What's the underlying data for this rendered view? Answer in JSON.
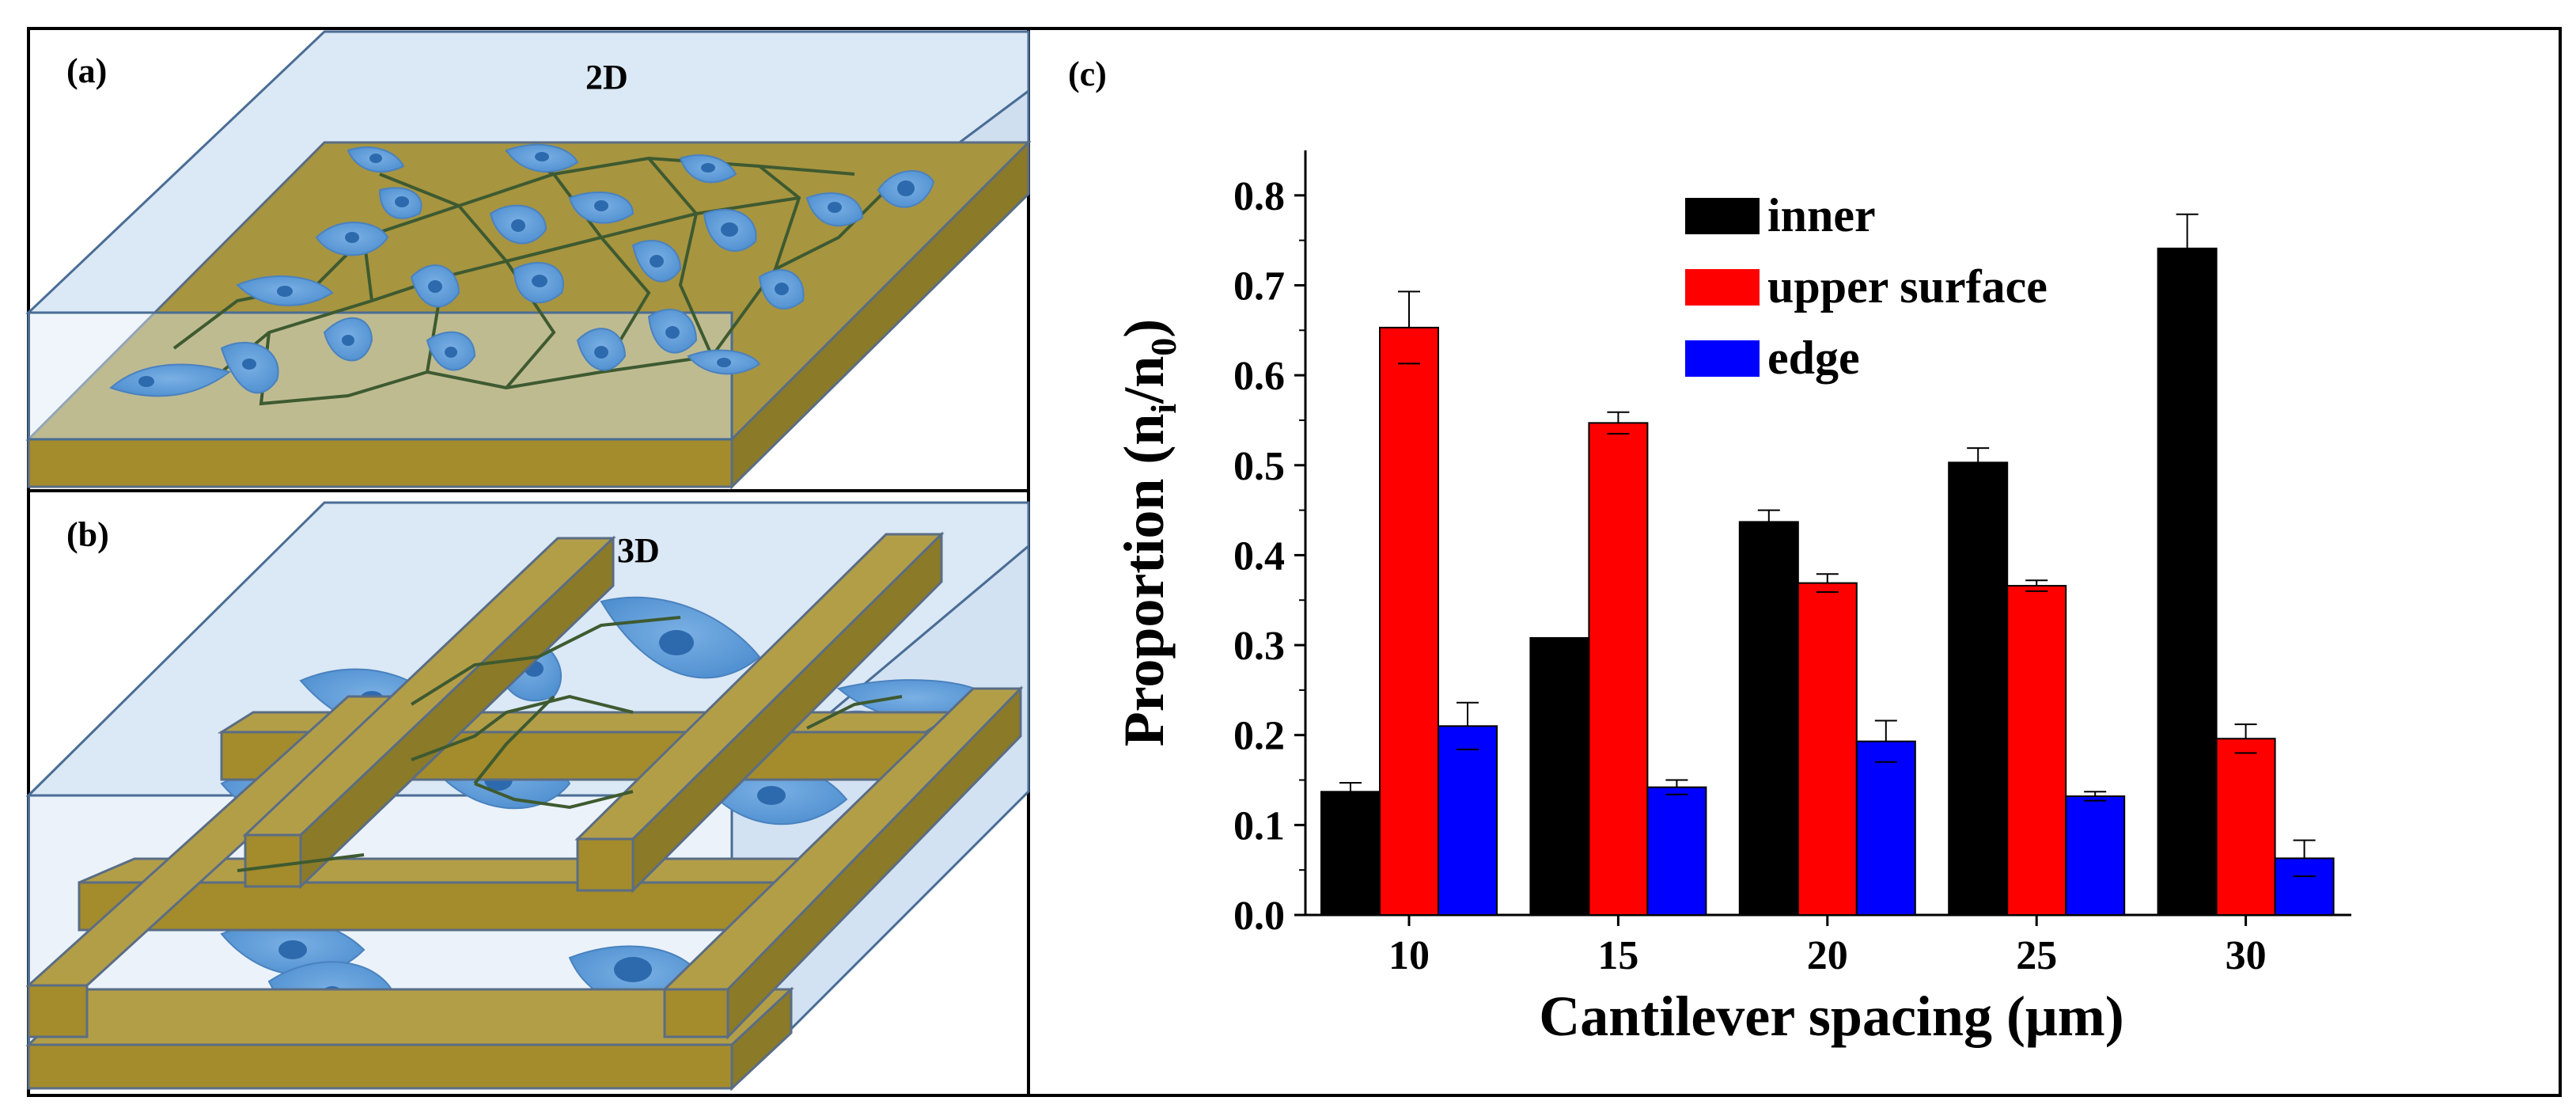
{
  "panels": {
    "a": {
      "label": "(a)",
      "title": "2D"
    },
    "b": {
      "label": "(b)",
      "title": "3D"
    },
    "c": {
      "label": "(c)"
    }
  },
  "colors": {
    "inner": "#000000",
    "upper": "#ff0000",
    "edge": "#0000ff",
    "substrate_top": "#a89540",
    "substrate_side": "#8b7a28",
    "glass": "#dbe8f5",
    "glass_edge": "#4a6d95",
    "cell": "#5d9bd8",
    "nucleus": "#2d6aad",
    "fiber": "#3e5a30"
  },
  "chart_data": {
    "type": "bar",
    "categories": [
      "10",
      "15",
      "20",
      "25",
      "30"
    ],
    "series": [
      {
        "name": "inner",
        "values": [
          0.137,
          0.308,
          0.437,
          0.503,
          0.741
        ],
        "errors": [
          0.01,
          0.0,
          0.013,
          0.016,
          0.038
        ]
      },
      {
        "name": "upper surface",
        "values": [
          0.653,
          0.547,
          0.369,
          0.366,
          0.196
        ],
        "errors": [
          0.04,
          0.012,
          0.01,
          0.006,
          0.016
        ]
      },
      {
        "name": "edge",
        "values": [
          0.21,
          0.142,
          0.193,
          0.132,
          0.063
        ],
        "errors": [
          0.026,
          0.008,
          0.023,
          0.005,
          0.02
        ]
      }
    ],
    "xlabel": "Cantilever spacing (μm)",
    "ylabel_main": "Proportion (n",
    "ylabel_sub1": "i",
    "ylabel_mid": "/n",
    "ylabel_sub2": "0",
    "ylabel_end": ")",
    "ylim": [
      0,
      0.85
    ],
    "yticks": [
      "0.0",
      "0.1",
      "0.2",
      "0.3",
      "0.4",
      "0.5",
      "0.6",
      "0.7",
      "0.8"
    ],
    "legend_position": "top-center",
    "grid": false
  }
}
